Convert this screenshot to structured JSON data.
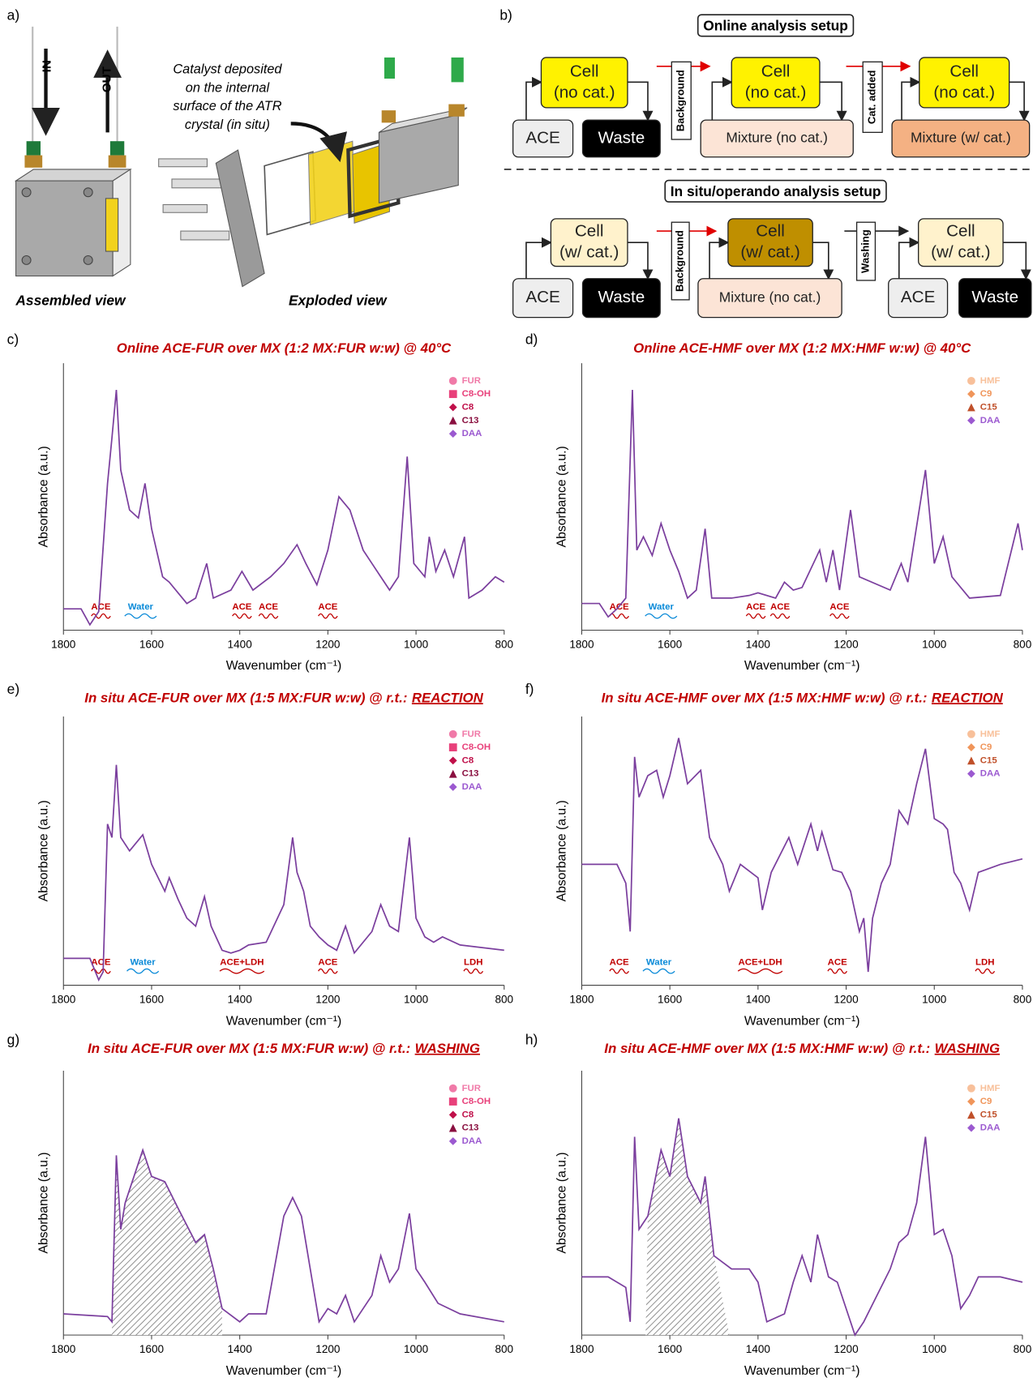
{
  "panel_a": {
    "label": "a)",
    "inlet": "NI",
    "outlet": "OUT",
    "caption": [
      "Catalyst deposited",
      "on the internal",
      "surface of the ATR",
      "crystal (in situ)"
    ],
    "assembled": "Assembled view",
    "exploded": "Exploded view"
  },
  "panel_b": {
    "label": "b)",
    "online": {
      "title": "Online analysis setup",
      "cell_a": [
        "Cell",
        "(no cat.)"
      ],
      "ace": "ACE",
      "waste": "Waste",
      "step1": "Background",
      "cell_b": [
        "Cell",
        "(no cat.)"
      ],
      "mixture_b": "Mixture (no cat.)",
      "step2": "Cat. added",
      "cell_c": [
        "Cell",
        "(no cat.)"
      ],
      "mixture_c": "Mixture (w/ cat.)"
    },
    "insitu": {
      "title": "In situ/operando analysis setup",
      "cell_a": [
        "Cell",
        "(w/ cat.)"
      ],
      "ace": "ACE",
      "waste": "Waste",
      "step1": "Background",
      "cell_b": [
        "Cell",
        "(w/ cat.)"
      ],
      "mixture_b": "Mixture (no cat.)",
      "step2": "Washing",
      "cell_c": [
        "Cell",
        "(w/ cat.)"
      ],
      "ace_c": "ACE",
      "waste_c": "Waste"
    }
  },
  "chart_data": [
    {
      "type": "line",
      "panel_label": "c)",
      "title": "Online ACE-FUR over MX (1:2 MX:FUR w:w) @ 40°C",
      "x_label": "Wavenumber (cm⁻¹)",
      "y_label": "Absorbance (a.u.)",
      "xlim": [
        1800,
        800
      ],
      "xticks": [
        1800,
        1600,
        1400,
        1200,
        1000,
        800
      ],
      "ylim": [
        0,
        1
      ],
      "legend": [
        {
          "name": "FUR",
          "color": "#f07aa8",
          "marker": "circle"
        },
        {
          "name": "C8-OH",
          "color": "#e8407a",
          "marker": "square"
        },
        {
          "name": "C8",
          "color": "#c0104a",
          "marker": "diamond"
        },
        {
          "name": "C13",
          "color": "#8a1040",
          "marker": "triangle"
        },
        {
          "name": "DAA",
          "color": "#9b59d0",
          "marker": "diamond"
        }
      ],
      "annotations": [
        {
          "text": "ACE",
          "x": 1715,
          "color": "#c00000"
        },
        {
          "text": "Water",
          "x": 1625,
          "color": "#0a8ad8"
        },
        {
          "text": "ACE",
          "x": 1395,
          "color": "#c00000"
        },
        {
          "text": "ACE",
          "x": 1335,
          "color": "#c00000"
        },
        {
          "text": "ACE",
          "x": 1200,
          "color": "#c00000"
        }
      ],
      "color": "#7b3f9e",
      "x": [
        1800,
        1760,
        1740,
        1720,
        1700,
        1690,
        1680,
        1670,
        1650,
        1630,
        1615,
        1600,
        1575,
        1560,
        1520,
        1500,
        1475,
        1460,
        1420,
        1395,
        1370,
        1330,
        1300,
        1270,
        1250,
        1225,
        1200,
        1175,
        1150,
        1120,
        1100,
        1080,
        1060,
        1040,
        1020,
        1005,
        980,
        970,
        955,
        935,
        915,
        890,
        880,
        850,
        820,
        800
      ],
      "values": [
        0.08,
        0.08,
        0.02,
        0.07,
        0.55,
        0.72,
        0.9,
        0.6,
        0.45,
        0.42,
        0.55,
        0.38,
        0.2,
        0.18,
        0.1,
        0.12,
        0.25,
        0.12,
        0.15,
        0.22,
        0.15,
        0.2,
        0.25,
        0.32,
        0.25,
        0.17,
        0.3,
        0.5,
        0.45,
        0.3,
        0.25,
        0.2,
        0.15,
        0.2,
        0.65,
        0.25,
        0.2,
        0.35,
        0.22,
        0.3,
        0.2,
        0.35,
        0.12,
        0.15,
        0.2,
        0.18
      ]
    },
    {
      "type": "line",
      "panel_label": "d)",
      "title": "Online ACE-HMF over MX (1:2 MX:HMF w:w) @ 40°C",
      "x_label": "Wavenumber (cm⁻¹)",
      "y_label": "Absorbance (a.u.)",
      "xlim": [
        1800,
        800
      ],
      "xticks": [
        1800,
        1600,
        1400,
        1200,
        1000,
        800
      ],
      "ylim": [
        0,
        1
      ],
      "legend": [
        {
          "name": "HMF",
          "color": "#f8c09a",
          "marker": "circle"
        },
        {
          "name": "C9",
          "color": "#f0955a",
          "marker": "diamond"
        },
        {
          "name": "C15",
          "color": "#c0502a",
          "marker": "triangle"
        },
        {
          "name": "DAA",
          "color": "#9b59d0",
          "marker": "diamond"
        }
      ],
      "annotations": [
        {
          "text": "ACE",
          "x": 1715,
          "color": "#c00000"
        },
        {
          "text": "Water",
          "x": 1620,
          "color": "#0a8ad8"
        },
        {
          "text": "ACE",
          "x": 1405,
          "color": "#c00000"
        },
        {
          "text": "ACE",
          "x": 1350,
          "color": "#c00000"
        },
        {
          "text": "ACE",
          "x": 1215,
          "color": "#c00000"
        }
      ],
      "color": "#7b3f9e",
      "x": [
        1800,
        1760,
        1740,
        1720,
        1700,
        1685,
        1675,
        1660,
        1640,
        1620,
        1600,
        1580,
        1560,
        1540,
        1520,
        1505,
        1460,
        1420,
        1400,
        1360,
        1340,
        1320,
        1300,
        1260,
        1245,
        1230,
        1215,
        1190,
        1170,
        1100,
        1075,
        1060,
        1020,
        1000,
        980,
        960,
        920,
        850,
        810,
        800
      ],
      "values": [
        0.1,
        0.1,
        0.05,
        0.08,
        0.12,
        0.9,
        0.3,
        0.35,
        0.28,
        0.4,
        0.3,
        0.22,
        0.12,
        0.15,
        0.38,
        0.12,
        0.12,
        0.13,
        0.14,
        0.12,
        0.18,
        0.15,
        0.16,
        0.3,
        0.18,
        0.3,
        0.15,
        0.45,
        0.2,
        0.15,
        0.25,
        0.18,
        0.6,
        0.25,
        0.35,
        0.2,
        0.12,
        0.13,
        0.4,
        0.3
      ]
    },
    {
      "type": "line",
      "panel_label": "e)",
      "title": "In situ ACE-FUR over MX (1:5 MX:FUR w:w) @ r.t.:",
      "title_emphasis": "REACTION",
      "x_label": "Wavenumber (cm⁻¹)",
      "y_label": "Absorbance (a.u.)",
      "xlim": [
        1800,
        800
      ],
      "xticks": [
        1800,
        1600,
        1400,
        1200,
        1000,
        800
      ],
      "ylim": [
        0,
        1
      ],
      "legend": [
        {
          "name": "FUR",
          "color": "#f07aa8",
          "marker": "circle"
        },
        {
          "name": "C8-OH",
          "color": "#e8407a",
          "marker": "square"
        },
        {
          "name": "C8",
          "color": "#c0104a",
          "marker": "diamond"
        },
        {
          "name": "C13",
          "color": "#8a1040",
          "marker": "triangle"
        },
        {
          "name": "DAA",
          "color": "#9b59d0",
          "marker": "diamond"
        }
      ],
      "annotations": [
        {
          "text": "ACE",
          "x": 1715,
          "color": "#c00000"
        },
        {
          "text": "Water",
          "x": 1620,
          "color": "#0a8ad8"
        },
        {
          "text": "ACE+LDH",
          "x": 1395,
          "color": "#c00000"
        },
        {
          "text": "ACE",
          "x": 1200,
          "color": "#c00000"
        },
        {
          "text": "LDH",
          "x": 870,
          "color": "#c00000"
        }
      ],
      "color": "#7b3f9e",
      "x": [
        1800,
        1740,
        1720,
        1710,
        1700,
        1690,
        1680,
        1670,
        1650,
        1620,
        1600,
        1570,
        1560,
        1540,
        1520,
        1500,
        1480,
        1465,
        1440,
        1420,
        1400,
        1380,
        1340,
        1300,
        1280,
        1270,
        1255,
        1240,
        1220,
        1200,
        1180,
        1160,
        1140,
        1100,
        1080,
        1060,
        1040,
        1015,
        1000,
        980,
        960,
        940,
        900,
        850,
        800
      ],
      "values": [
        0.1,
        0.1,
        0.02,
        0.05,
        0.6,
        0.55,
        0.82,
        0.55,
        0.5,
        0.56,
        0.45,
        0.35,
        0.4,
        0.32,
        0.25,
        0.22,
        0.33,
        0.22,
        0.13,
        0.12,
        0.13,
        0.15,
        0.16,
        0.3,
        0.55,
        0.42,
        0.35,
        0.22,
        0.18,
        0.15,
        0.13,
        0.22,
        0.12,
        0.2,
        0.3,
        0.22,
        0.2,
        0.55,
        0.25,
        0.18,
        0.16,
        0.18,
        0.15,
        0.14,
        0.13
      ]
    },
    {
      "type": "line",
      "panel_label": "f)",
      "title": "In situ ACE-HMF over MX (1:5 MX:HMF w:w) @ r.t.:",
      "title_emphasis": "REACTION",
      "x_label": "Wavenumber (cm⁻¹)",
      "y_label": "Absorbance (a.u.)",
      "xlim": [
        1800,
        800
      ],
      "xticks": [
        1800,
        1600,
        1400,
        1200,
        1000,
        800
      ],
      "ylim": [
        0,
        1
      ],
      "legend": [
        {
          "name": "HMF",
          "color": "#f8c09a",
          "marker": "circle"
        },
        {
          "name": "C9",
          "color": "#f0955a",
          "marker": "diamond"
        },
        {
          "name": "C15",
          "color": "#c0502a",
          "marker": "triangle"
        },
        {
          "name": "DAA",
          "color": "#9b59d0",
          "marker": "diamond"
        }
      ],
      "annotations": [
        {
          "text": "ACE",
          "x": 1715,
          "color": "#c00000"
        },
        {
          "text": "Water",
          "x": 1625,
          "color": "#0a8ad8"
        },
        {
          "text": "ACE+LDH",
          "x": 1395,
          "color": "#c00000"
        },
        {
          "text": "ACE",
          "x": 1220,
          "color": "#c00000"
        },
        {
          "text": "LDH",
          "x": 885,
          "color": "#c00000"
        }
      ],
      "color": "#7b3f9e",
      "x": [
        1800,
        1720,
        1700,
        1690,
        1680,
        1670,
        1650,
        1630,
        1615,
        1600,
        1580,
        1560,
        1530,
        1510,
        1480,
        1465,
        1440,
        1400,
        1390,
        1370,
        1330,
        1310,
        1280,
        1265,
        1255,
        1230,
        1210,
        1190,
        1170,
        1160,
        1150,
        1140,
        1120,
        1100,
        1080,
        1060,
        1040,
        1020,
        1000,
        980,
        970,
        955,
        940,
        920,
        900,
        850,
        800
      ],
      "values": [
        0.45,
        0.45,
        0.38,
        0.2,
        0.85,
        0.7,
        0.78,
        0.8,
        0.7,
        0.78,
        0.92,
        0.75,
        0.8,
        0.55,
        0.45,
        0.35,
        0.45,
        0.4,
        0.28,
        0.42,
        0.55,
        0.45,
        0.6,
        0.5,
        0.57,
        0.43,
        0.42,
        0.35,
        0.2,
        0.25,
        0.05,
        0.25,
        0.38,
        0.45,
        0.65,
        0.6,
        0.75,
        0.88,
        0.62,
        0.6,
        0.58,
        0.42,
        0.38,
        0.28,
        0.42,
        0.45,
        0.47
      ]
    },
    {
      "type": "line",
      "panel_label": "g)",
      "title": "In situ ACE-FUR over MX (1:5 MX:FUR w:w) @ r.t.:",
      "title_emphasis": "WASHING",
      "x_label": "Wavenumber (cm⁻¹)",
      "y_label": "Absorbance (a.u.)",
      "xlim": [
        1800,
        800
      ],
      "xticks": [
        1800,
        1600,
        1400,
        1200,
        1000,
        800
      ],
      "ylim": [
        0,
        1
      ],
      "legend": [
        {
          "name": "FUR",
          "color": "#f07aa8",
          "marker": "circle"
        },
        {
          "name": "C8-OH",
          "color": "#e8407a",
          "marker": "square"
        },
        {
          "name": "C8",
          "color": "#c0104a",
          "marker": "diamond"
        },
        {
          "name": "C13",
          "color": "#8a1040",
          "marker": "triangle"
        },
        {
          "name": "DAA",
          "color": "#9b59d0",
          "marker": "diamond"
        }
      ],
      "shaded_range": [
        1690,
        1440
      ],
      "color": "#7b3f9e",
      "x": [
        1800,
        1700,
        1690,
        1680,
        1670,
        1660,
        1640,
        1620,
        1600,
        1570,
        1540,
        1500,
        1480,
        1460,
        1440,
        1400,
        1380,
        1340,
        1300,
        1280,
        1260,
        1240,
        1220,
        1200,
        1180,
        1160,
        1140,
        1100,
        1080,
        1060,
        1040,
        1015,
        1000,
        980,
        950,
        900,
        800
      ],
      "values": [
        0.08,
        0.07,
        0.05,
        0.68,
        0.4,
        0.5,
        0.6,
        0.7,
        0.6,
        0.58,
        0.48,
        0.35,
        0.38,
        0.25,
        0.1,
        0.05,
        0.08,
        0.08,
        0.45,
        0.52,
        0.45,
        0.25,
        0.05,
        0.1,
        0.08,
        0.15,
        0.05,
        0.15,
        0.3,
        0.2,
        0.25,
        0.46,
        0.25,
        0.2,
        0.12,
        0.08,
        0.05
      ]
    },
    {
      "type": "line",
      "panel_label": "h)",
      "title": "In situ ACE-HMF over MX (1:5 MX:HMF w:w) @ r.t.:",
      "title_emphasis": "WASHING",
      "x_label": "Wavenumber (cm⁻¹)",
      "y_label": "Absorbance (a.u.)",
      "xlim": [
        1800,
        800
      ],
      "xticks": [
        1800,
        1600,
        1400,
        1200,
        1000,
        800
      ],
      "ylim": [
        0,
        1
      ],
      "legend": [
        {
          "name": "HMF",
          "color": "#f8c09a",
          "marker": "circle"
        },
        {
          "name": "C9",
          "color": "#f0955a",
          "marker": "diamond"
        },
        {
          "name": "C15",
          "color": "#c0502a",
          "marker": "triangle"
        },
        {
          "name": "DAA",
          "color": "#9b59d0",
          "marker": "diamond"
        }
      ],
      "shaded_range": [
        1655,
        1465
      ],
      "color": "#7b3f9e",
      "x": [
        1800,
        1740,
        1700,
        1690,
        1680,
        1670,
        1650,
        1620,
        1600,
        1580,
        1560,
        1530,
        1520,
        1500,
        1460,
        1420,
        1400,
        1380,
        1340,
        1320,
        1300,
        1280,
        1265,
        1240,
        1220,
        1200,
        1180,
        1160,
        1100,
        1080,
        1060,
        1040,
        1020,
        1000,
        980,
        960,
        940,
        920,
        900,
        850,
        800
      ],
      "values": [
        0.22,
        0.22,
        0.18,
        0.05,
        0.75,
        0.4,
        0.45,
        0.7,
        0.6,
        0.82,
        0.6,
        0.5,
        0.6,
        0.3,
        0.25,
        0.25,
        0.2,
        0.05,
        0.08,
        0.2,
        0.3,
        0.2,
        0.38,
        0.22,
        0.2,
        0.1,
        0.0,
        0.05,
        0.25,
        0.35,
        0.38,
        0.5,
        0.75,
        0.38,
        0.4,
        0.3,
        0.1,
        0.15,
        0.22,
        0.22,
        0.2
      ]
    }
  ]
}
